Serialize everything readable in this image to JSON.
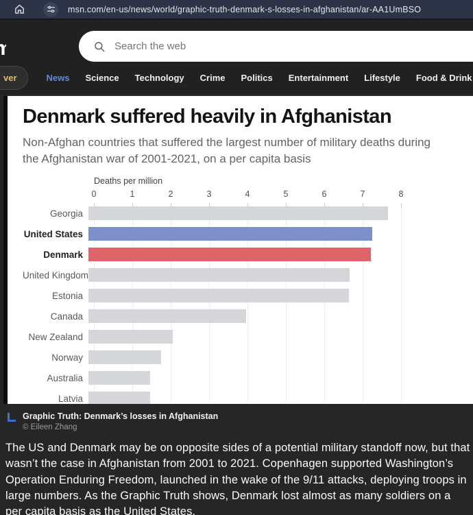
{
  "browser": {
    "url": "msn.com/en-us/news/world/graphic-truth-denmark-s-losses-in-afghanistan/ar-AA1UmBSO"
  },
  "header": {
    "logo_fragment": "m",
    "search_placeholder": "Search the web"
  },
  "nav": {
    "discover_partial": "ver",
    "items": [
      {
        "label": "News",
        "active": true
      },
      {
        "label": "Science",
        "active": false
      },
      {
        "label": "Technology",
        "active": false
      },
      {
        "label": "Crime",
        "active": false
      },
      {
        "label": "Politics",
        "active": false
      },
      {
        "label": "Entertainment",
        "active": false
      },
      {
        "label": "Lifestyle",
        "active": false
      },
      {
        "label": "Food & Drink",
        "active": false
      }
    ]
  },
  "article": {
    "title": "Denmark suffered heavily in Afghanistan",
    "subtitle": "Non-Afghan countries that suffered the largest number of military deaths during the Afghanistan war of 2001-2021, on a per capita basis"
  },
  "chart_data": {
    "type": "bar",
    "orientation": "horizontal",
    "title": "Denmark suffered heavily in Afghanistan",
    "subtitle": "Non-Afghan countries that suffered the largest number of military deaths during the Afghanistan war of 2001-2021, on a per capita basis",
    "axis_label": "Deaths per million",
    "x_ticks": [
      0,
      1,
      2,
      3,
      4,
      5,
      6,
      7,
      8
    ],
    "xlim": [
      0,
      8
    ],
    "grid": true,
    "categories": [
      "Georgia",
      "United States",
      "Denmark",
      "United Kingdom",
      "Estonia",
      "Canada",
      "New Zealand",
      "Norway",
      "Australia",
      "Latvia"
    ],
    "values": [
      7.8,
      7.4,
      7.35,
      6.8,
      6.78,
      4.1,
      2.2,
      1.9,
      1.6,
      1.6
    ],
    "bold_labels": [
      "United States",
      "Denmark"
    ],
    "colors": {
      "default": "#d5d6da",
      "United States": "#7e90ca",
      "Denmark": "#de6467"
    }
  },
  "caption": {
    "title": "Graphic Truth: Denmark’s losses in Afghanistan",
    "credit": "© Eileen Zhang"
  },
  "body_text": "The US and Denmark may be on opposite sides of a potential military standoff now, but that wasn’t the case in Afghanistan from 2001 to 2021. Copenhagen supported Washington’s Operation Enduring Freedom, launched in the wake of the 9/11 attacks, deploying troops in large numbers. As the Graphic Truth shows, Denmark lost almost as many soldiers on a per capita basis as the United States."
}
